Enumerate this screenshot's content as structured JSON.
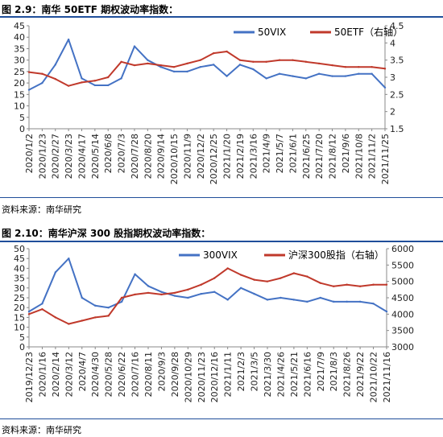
{
  "figures": [
    {
      "title": "图 2.9：南华 50ETF 期权波动率指数：",
      "source": "资料来源：南华研究"
    },
    {
      "title": "图 2.10：南华沪深 300 股指期权波动率指数：",
      "source": "资料来源：南华研究"
    }
  ],
  "chart_data": [
    {
      "type": "line",
      "title": "图 2.9：南华 50ETF 期权波动率指数：",
      "categories": [
        "2020/1/2",
        "2020/1/23",
        "2020/2/27",
        "2020/3/23",
        "2020/4/17",
        "2020/5/14",
        "2020/6/8",
        "2020/7/3",
        "2020/7/28",
        "2020/8/20",
        "2020/9/14",
        "2020/10/15",
        "2020/11/9",
        "2020/12/2",
        "2020/12/25",
        "2021/1/20",
        "2021/2/19",
        "2021/3/16",
        "2021/4/9",
        "2021/5/7",
        "2021/6/1",
        "2021/6/25",
        "2021/7/20",
        "2021/8/12",
        "2021/9/6",
        "2021/10/8",
        "2021/11/2",
        "2021/11/25"
      ],
      "series": [
        {
          "name": "50VIX",
          "axis": "left",
          "color": "#4472c4",
          "values": [
            17,
            20,
            28,
            39,
            22,
            19,
            19,
            22,
            36,
            30,
            27,
            25,
            25,
            27,
            28,
            23,
            28,
            26,
            22,
            24,
            23,
            22,
            24,
            23,
            23,
            24,
            24,
            18
          ]
        },
        {
          "name": "50ETF（右轴）",
          "axis": "right",
          "color": "#c0392b",
          "values": [
            3.15,
            3.1,
            2.95,
            2.75,
            2.85,
            2.9,
            3.0,
            3.45,
            3.35,
            3.4,
            3.35,
            3.3,
            3.4,
            3.5,
            3.7,
            3.75,
            3.5,
            3.45,
            3.45,
            3.5,
            3.5,
            3.45,
            3.4,
            3.35,
            3.3,
            3.3,
            3.3,
            3.25
          ]
        }
      ],
      "ylim_left": [
        0,
        45
      ],
      "yticks_left": [
        "0",
        "5",
        "10",
        "15",
        "20",
        "25",
        "30",
        "35",
        "40",
        "45"
      ],
      "ylim_right": [
        1.5,
        4.5
      ],
      "yticks_right": [
        "1.5",
        "2",
        "2.5",
        "3",
        "3.5",
        "4",
        "4.5"
      ],
      "legend": "top-right",
      "grid": false
    },
    {
      "type": "line",
      "title": "图 2.10：南华沪深 300 股指期权波动率指数：",
      "categories": [
        "2019/12/23",
        "2020/1/16",
        "2020/2/14",
        "2020/3/12",
        "2020/4/7",
        "2020/4/30",
        "2020/5/28",
        "2020/6/22",
        "2020/7/16",
        "2020/8/11",
        "2020/9/3",
        "2020/9/28",
        "2020/10/29",
        "2020/11/23",
        "2020/12/16",
        "2021/1/11",
        "2021/2/3",
        "2021/3/5",
        "2021/3/30",
        "2021/4/26",
        "2021/5/21",
        "2021/6/16",
        "2021/7/9",
        "2021/8/3",
        "2021/8/26",
        "2021/9/22",
        "2021/10/22",
        "2021/11/16"
      ],
      "series": [
        {
          "name": "300VIX",
          "axis": "left",
          "color": "#4472c4",
          "values": [
            18,
            22,
            38,
            45,
            25,
            21,
            20,
            23,
            37,
            31,
            28,
            26,
            25,
            27,
            28,
            24,
            30,
            27,
            24,
            25,
            24,
            23,
            25,
            23,
            23,
            23,
            22,
            18
          ]
        },
        {
          "name": "沪深300股指（右轴）",
          "axis": "right",
          "color": "#c0392b",
          "values": [
            4000,
            4150,
            3900,
            3700,
            3800,
            3900,
            3950,
            4500,
            4600,
            4650,
            4600,
            4650,
            4750,
            4900,
            5100,
            5400,
            5200,
            5050,
            5000,
            5100,
            5250,
            5150,
            4950,
            4850,
            4900,
            4850,
            4900,
            4900
          ]
        }
      ],
      "ylim_left": [
        0,
        50
      ],
      "yticks_left": [
        "0",
        "5",
        "10",
        "15",
        "20",
        "25",
        "30",
        "35",
        "40",
        "45",
        "50"
      ],
      "ylim_right": [
        3000,
        6000
      ],
      "yticks_right": [
        "3000",
        "3500",
        "4000",
        "4500",
        "5000",
        "5500",
        "6000"
      ],
      "legend": "top-right",
      "grid": false
    }
  ]
}
